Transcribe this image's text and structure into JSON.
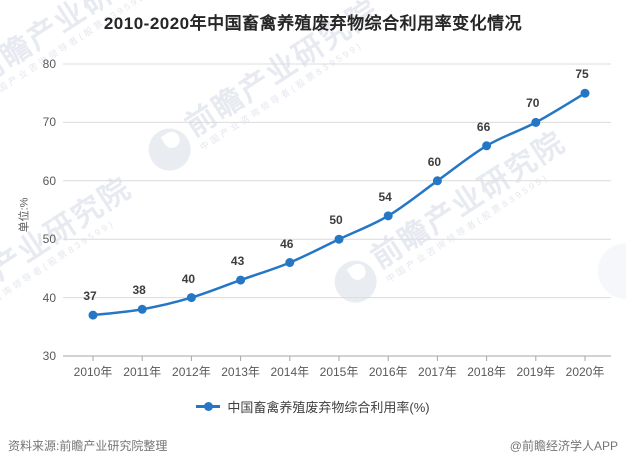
{
  "title": "2010-2020年中国畜禽养殖废弃物综合利用率变化情况",
  "chart_data": {
    "type": "line",
    "categories": [
      "2010年",
      "2011年",
      "2012年",
      "2013年",
      "2014年",
      "2015年",
      "2016年",
      "2017年",
      "2018年",
      "2019年",
      "2020年"
    ],
    "series": [
      {
        "name": "中国畜禽养殖废弃物综合利用率(%)",
        "values": [
          37,
          38,
          40,
          43,
          46,
          50,
          54,
          60,
          66,
          70,
          75
        ]
      }
    ],
    "title": "2010-2020年中国畜禽养殖废弃物综合利用率变化情况",
    "xlabel": "",
    "ylabel": "单位:%",
    "ylim": [
      30,
      80
    ],
    "ytick_step": 10,
    "grid": "horizontal",
    "legend_position": "bottom",
    "smooth": true
  },
  "colors": {
    "line": "#2577c5",
    "grid": "#dcdcdc",
    "axis": "#a6a6a6",
    "tick_text": "#595959",
    "data_label": "#3d3d3d",
    "title_text": "#262626",
    "footer_text": "#757575"
  },
  "y_axis": {
    "unit_label": "单位:%"
  },
  "legend": {
    "label": "中国畜禽养殖废弃物综合利用率(%)"
  },
  "footer": {
    "source": "资料来源:前瞻产业研究院整理",
    "credit": "@前瞻经济学人APP"
  },
  "watermark": {
    "brand": "前瞻产业研究院",
    "tagline": "中国产业咨询领导者(股票839599)"
  }
}
